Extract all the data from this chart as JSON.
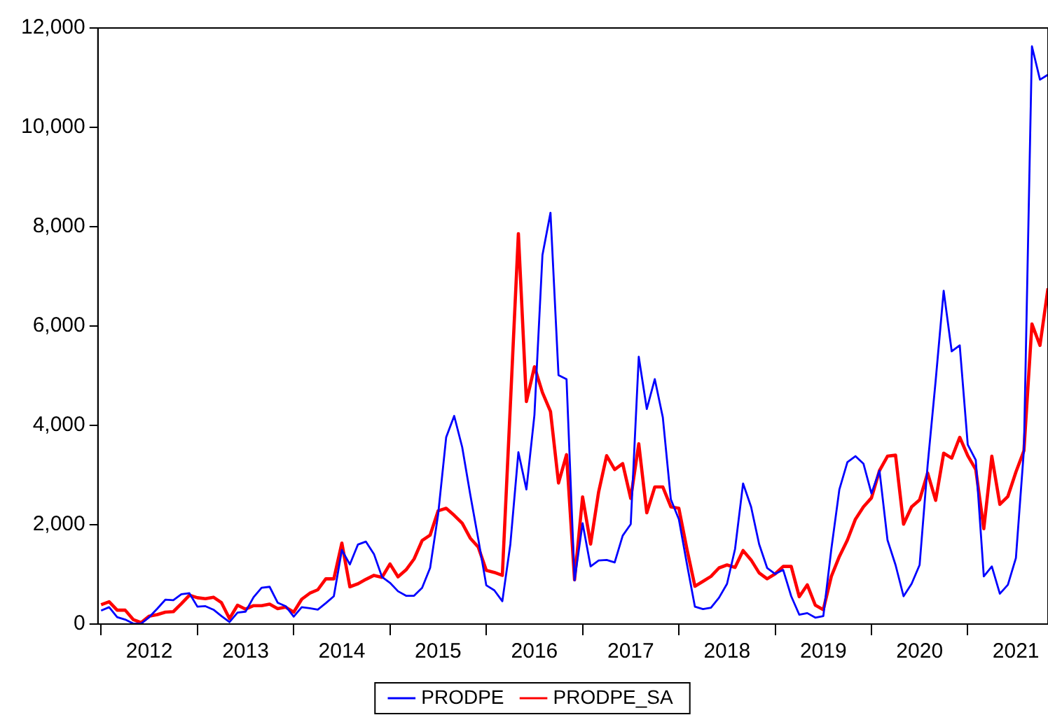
{
  "chart_data": {
    "type": "line",
    "x": [
      "2012-01",
      "2012-02",
      "2012-03",
      "2012-04",
      "2012-05",
      "2012-06",
      "2012-07",
      "2012-08",
      "2012-09",
      "2012-10",
      "2012-11",
      "2012-12",
      "2013-01",
      "2013-02",
      "2013-03",
      "2013-04",
      "2013-05",
      "2013-06",
      "2013-07",
      "2013-08",
      "2013-09",
      "2013-10",
      "2013-11",
      "2013-12",
      "2014-01",
      "2014-02",
      "2014-03",
      "2014-04",
      "2014-05",
      "2014-06",
      "2014-07",
      "2014-08",
      "2014-09",
      "2014-10",
      "2014-11",
      "2014-12",
      "2015-01",
      "2015-02",
      "2015-03",
      "2015-04",
      "2015-05",
      "2015-06",
      "2015-07",
      "2015-08",
      "2015-09",
      "2015-10",
      "2015-11",
      "2015-12",
      "2016-01",
      "2016-02",
      "2016-03",
      "2016-04",
      "2016-05",
      "2016-06",
      "2016-07",
      "2016-08",
      "2016-09",
      "2016-10",
      "2016-11",
      "2016-12",
      "2017-01",
      "2017-02",
      "2017-03",
      "2017-04",
      "2017-05",
      "2017-06",
      "2017-07",
      "2017-08",
      "2017-09",
      "2017-10",
      "2017-11",
      "2017-12",
      "2018-01",
      "2018-02",
      "2018-03",
      "2018-04",
      "2018-05",
      "2018-06",
      "2018-07",
      "2018-08",
      "2018-09",
      "2018-10",
      "2018-11",
      "2018-12",
      "2019-01",
      "2019-02",
      "2019-03",
      "2019-04",
      "2019-05",
      "2019-06",
      "2019-07",
      "2019-08",
      "2019-09",
      "2019-10",
      "2019-11",
      "2019-12",
      "2020-01",
      "2020-02",
      "2020-03",
      "2020-04",
      "2020-05",
      "2020-06",
      "2020-07",
      "2020-08",
      "2020-09",
      "2020-10",
      "2020-11",
      "2020-12",
      "2021-01",
      "2021-02",
      "2021-03",
      "2021-04",
      "2021-05",
      "2021-06",
      "2021-07",
      "2021-08",
      "2021-09",
      "2021-10",
      "2021-11"
    ],
    "series": [
      {
        "name": "PRODPE",
        "color": "#0000ff",
        "values": [
          270,
          340,
          140,
          90,
          10,
          10,
          140,
          310,
          490,
          480,
          600,
          620,
          350,
          360,
          290,
          160,
          40,
          230,
          250,
          540,
          730,
          750,
          430,
          360,
          150,
          340,
          320,
          290,
          420,
          560,
          1490,
          1200,
          1600,
          1660,
          1410,
          950,
          830,
          660,
          570,
          570,
          730,
          1130,
          2210,
          3760,
          4190,
          3560,
          2610,
          1710,
          780,
          680,
          460,
          1610,
          3460,
          2710,
          4210,
          7430,
          8280,
          5010,
          4930,
          880,
          2030,
          1160,
          1280,
          1290,
          1240,
          1780,
          2010,
          5380,
          4330,
          4930,
          4160,
          2510,
          2110,
          1210,
          350,
          300,
          330,
          530,
          810,
          1510,
          2830,
          2360,
          1610,
          1130,
          1010,
          1090,
          560,
          190,
          220,
          130,
          160,
          1510,
          2710,
          3260,
          3380,
          3230,
          2630,
          3090,
          1690,
          1190,
          560,
          810,
          1190,
          3200,
          4900,
          6710,
          5490,
          5610,
          3610,
          3300,
          960,
          1160,
          610,
          790,
          1330,
          3510,
          11630,
          10960,
          11060
        ]
      },
      {
        "name": "PRODPE_SA",
        "color": "#ff0000",
        "values": [
          390,
          450,
          280,
          280,
          90,
          30,
          160,
          190,
          240,
          250,
          410,
          580,
          530,
          510,
          540,
          430,
          110,
          380,
          300,
          370,
          370,
          400,
          310,
          340,
          240,
          500,
          620,
          690,
          910,
          910,
          1630,
          750,
          810,
          900,
          980,
          940,
          1210,
          950,
          1090,
          1310,
          1680,
          1790,
          2280,
          2330,
          2190,
          2030,
          1730,
          1550,
          1080,
          1040,
          980,
          4410,
          7860,
          4480,
          5180,
          4660,
          4280,
          2840,
          3410,
          890,
          2560,
          1610,
          2660,
          3390,
          3110,
          3230,
          2530,
          3630,
          2240,
          2760,
          2760,
          2360,
          2330,
          1510,
          760,
          860,
          960,
          1130,
          1190,
          1140,
          1480,
          1290,
          1030,
          910,
          1010,
          1160,
          1160,
          550,
          790,
          380,
          290,
          960,
          1360,
          1690,
          2110,
          2360,
          2540,
          3090,
          3380,
          3400,
          2010,
          2360,
          2500,
          3040,
          2490,
          3440,
          3340,
          3760,
          3390,
          3110,
          1920,
          3380,
          2410,
          2570,
          3060,
          3490,
          6040,
          5610,
          6760
        ]
      }
    ],
    "xlim": [
      "2012-01",
      "2021-11"
    ],
    "xticks": [
      {
        "value": "2012-01",
        "label": null
      },
      {
        "value": "2012-07",
        "label": "2012"
      },
      {
        "value": "2013-01",
        "label": null
      },
      {
        "value": "2013-07",
        "label": "2013"
      },
      {
        "value": "2014-01",
        "label": null
      },
      {
        "value": "2014-07",
        "label": "2014"
      },
      {
        "value": "2015-01",
        "label": null
      },
      {
        "value": "2015-07",
        "label": "2015"
      },
      {
        "value": "2016-01",
        "label": null
      },
      {
        "value": "2016-07",
        "label": "2016"
      },
      {
        "value": "2017-01",
        "label": null
      },
      {
        "value": "2017-07",
        "label": "2017"
      },
      {
        "value": "2018-01",
        "label": null
      },
      {
        "value": "2018-07",
        "label": "2018"
      },
      {
        "value": "2019-01",
        "label": null
      },
      {
        "value": "2019-07",
        "label": "2019"
      },
      {
        "value": "2020-01",
        "label": null
      },
      {
        "value": "2020-07",
        "label": "2020"
      },
      {
        "value": "2021-01",
        "label": null
      },
      {
        "value": "2021-07",
        "label": "2021"
      }
    ],
    "ylim": [
      0,
      12000
    ],
    "yticks": [
      {
        "value": 0,
        "label": "0"
      },
      {
        "value": 2000,
        "label": "2,000"
      },
      {
        "value": 4000,
        "label": "4,000"
      },
      {
        "value": 6000,
        "label": "6,000"
      },
      {
        "value": 8000,
        "label": "8,000"
      },
      {
        "value": 10000,
        "label": "10,000"
      },
      {
        "value": 12000,
        "label": "12,000"
      }
    ],
    "grid": false,
    "legend": "bottom",
    "marker": "none",
    "line_style": "solid"
  }
}
